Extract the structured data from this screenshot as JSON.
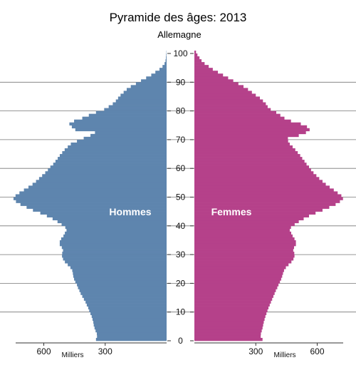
{
  "chart_data": {
    "type": "bar",
    "orientation": "horizontal",
    "title": "Pyramide des âges: 2013",
    "subtitle": "Allemagne",
    "y_axis": {
      "label": "",
      "range": [
        0,
        100
      ],
      "ticks": [
        0,
        10,
        20,
        30,
        40,
        50,
        60,
        70,
        80,
        90,
        100
      ]
    },
    "x_axis": {
      "unit": "Milliers",
      "range": [
        0,
        750
      ],
      "ticks": [
        300,
        600
      ]
    },
    "age_step": 1,
    "series": [
      {
        "name": "Hommes",
        "color": "#5e85ae",
        "values": [
          345,
          340,
          341,
          347,
          352,
          356,
          358,
          362,
          366,
          372,
          378,
          383,
          390,
          396,
          404,
          412,
          420,
          426,
          433,
          438,
          446,
          452,
          456,
          458,
          461,
          470,
          483,
          497,
          506,
          511,
          510,
          506,
          512,
          522,
          522,
          515,
          504,
          497,
          489,
          495,
          513,
          533,
          557,
          585,
          617,
          653,
          684,
          714,
          736,
          748,
          738,
          719,
          697,
          675,
          655,
          638,
          623,
          608,
          593,
          580,
          568,
          554,
          543,
          532,
          522,
          510,
          498,
          483,
          468,
          438,
          405,
          372,
          350,
          446,
          463,
          475,
          452,
          412,
          380,
          345,
          305,
          283,
          263,
          248,
          237,
          225,
          210,
          195,
          175,
          150,
          125,
          100,
          75,
          55,
          35,
          20,
          10,
          5,
          3,
          2,
          1
        ]
      },
      {
        "name": "Femmes",
        "color": "#b5418a",
        "values": [
          333,
          324,
          325,
          329,
          333,
          336,
          339,
          343,
          347,
          352,
          357,
          362,
          368,
          374,
          380,
          386,
          392,
          398,
          405,
          411,
          418,
          424,
          429,
          433,
          438,
          447,
          460,
          474,
          484,
          489,
          488,
          483,
          487,
          496,
          496,
          489,
          480,
          473,
          466,
          472,
          490,
          510,
          534,
          560,
          592,
          626,
          659,
          690,
          711,
          726,
          718,
          700,
          681,
          661,
          642,
          626,
          610,
          596,
          582,
          570,
          560,
          548,
          538,
          527,
          517,
          505,
          493,
          480,
          466,
          458,
          457,
          510,
          545,
          563,
          550,
          520,
          472,
          440,
          420,
          400,
          373,
          358,
          349,
          335,
          320,
          300,
          281,
          262,
          240,
          215,
          190,
          165,
          140,
          115,
          90,
          70,
          50,
          35,
          25,
          15,
          8
        ]
      }
    ],
    "grid": "horizontal lines every 10 years",
    "legend": "labels inside bars"
  }
}
